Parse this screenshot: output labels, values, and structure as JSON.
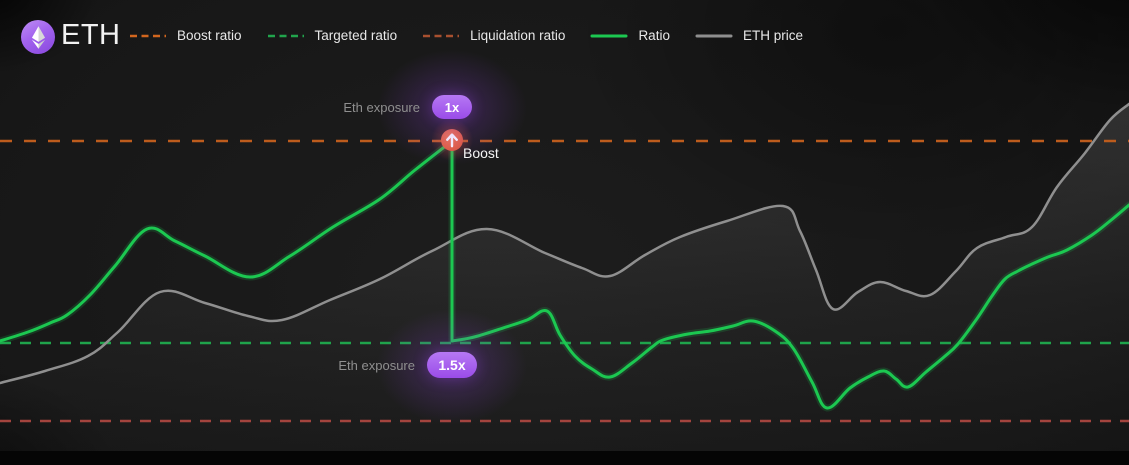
{
  "header": {
    "title": "ETH",
    "logo": {
      "icon": "ethereum-icon",
      "color": "#9b5cf0"
    },
    "legend": [
      {
        "label": "Boost ratio",
        "style": "dashed",
        "color": "#d2661e"
      },
      {
        "label": "Targeted ratio",
        "style": "dashed",
        "color": "#21a44c"
      },
      {
        "label": "Liquidation ratio",
        "style": "dashed",
        "color": "#a8502f"
      },
      {
        "label": "Ratio",
        "style": "solid",
        "color": "#1cc851"
      },
      {
        "label": "ETH price",
        "style": "solid",
        "color": "#8f8f8f"
      }
    ]
  },
  "annotations": {
    "exposure_top": {
      "label": "Eth exposure",
      "badge": "1x",
      "badge_color": "#a259f0"
    },
    "exposure_bottom": {
      "label": "Eth exposure",
      "badge": "1.5x",
      "badge_color": "#a259f0"
    },
    "boost_marker": {
      "label": "Boost",
      "color": "#e2563a",
      "icon": "arrow-up-icon"
    }
  },
  "chart_data": {
    "type": "line",
    "title": "ETH boost ratio simulation",
    "grid": false,
    "legend_position": "top",
    "coordinate_space": "screen pixels, 1129x465, y increases downward",
    "reference_lines": [
      {
        "name": "Boost ratio",
        "y": 141,
        "color": "#bd5c1d",
        "dash": [
          12,
          12
        ]
      },
      {
        "name": "Targeted ratio",
        "y": 343,
        "color": "#1fa34b",
        "dash": [
          11,
          9
        ]
      },
      {
        "name": "Liquidation ratio",
        "y": 421,
        "color": "#a3443e",
        "dash": [
          11,
          9
        ]
      }
    ],
    "series": [
      {
        "name": "ETH price",
        "color": "#8f8f8f",
        "width": 2.5,
        "area_fill": true,
        "points": [
          [
            0,
            383
          ],
          [
            45,
            371
          ],
          [
            88,
            356
          ],
          [
            118,
            332
          ],
          [
            160,
            292
          ],
          [
            205,
            303
          ],
          [
            248,
            316
          ],
          [
            282,
            320
          ],
          [
            330,
            300
          ],
          [
            380,
            279
          ],
          [
            432,
            251
          ],
          [
            487,
            229
          ],
          [
            545,
            253
          ],
          [
            582,
            268
          ],
          [
            610,
            276
          ],
          [
            645,
            255
          ],
          [
            680,
            237
          ],
          [
            727,
            221
          ],
          [
            783,
            206
          ],
          [
            800,
            231
          ],
          [
            816,
            270
          ],
          [
            833,
            309
          ],
          [
            858,
            292
          ],
          [
            880,
            282
          ],
          [
            906,
            291
          ],
          [
            930,
            295
          ],
          [
            956,
            271
          ],
          [
            977,
            248
          ],
          [
            1006,
            237
          ],
          [
            1032,
            227
          ],
          [
            1057,
            187
          ],
          [
            1085,
            153
          ],
          [
            1110,
            120
          ],
          [
            1129,
            104
          ]
        ]
      },
      {
        "name": "Ratio",
        "color": "#1cc851",
        "width": 3,
        "points_before_boost": [
          [
            0,
            341
          ],
          [
            28,
            332
          ],
          [
            50,
            323
          ],
          [
            67,
            315
          ],
          [
            90,
            295
          ],
          [
            115,
            266
          ],
          [
            147,
            229
          ],
          [
            175,
            241
          ],
          [
            205,
            256
          ],
          [
            250,
            277
          ],
          [
            290,
            256
          ],
          [
            333,
            227
          ],
          [
            380,
            199
          ],
          [
            415,
            170
          ],
          [
            452,
            141
          ]
        ],
        "boost_drop": {
          "x": 452,
          "from_y": 141,
          "to_y": 341
        },
        "points_after_boost": [
          [
            452,
            341
          ],
          [
            465,
            339
          ],
          [
            478,
            336
          ],
          [
            500,
            329
          ],
          [
            527,
            320
          ],
          [
            547,
            311
          ],
          [
            560,
            335
          ],
          [
            575,
            356
          ],
          [
            592,
            369
          ],
          [
            610,
            377
          ],
          [
            632,
            363
          ],
          [
            652,
            347
          ],
          [
            663,
            340
          ],
          [
            688,
            334
          ],
          [
            710,
            331
          ],
          [
            733,
            326
          ],
          [
            753,
            321
          ],
          [
            775,
            331
          ],
          [
            793,
            348
          ],
          [
            812,
            382
          ],
          [
            827,
            408
          ],
          [
            850,
            388
          ],
          [
            868,
            377
          ],
          [
            884,
            371
          ],
          [
            896,
            379
          ],
          [
            908,
            387
          ],
          [
            926,
            372
          ],
          [
            944,
            357
          ],
          [
            958,
            344
          ],
          [
            976,
            320
          ],
          [
            992,
            296
          ],
          [
            1005,
            279
          ],
          [
            1018,
            271
          ],
          [
            1030,
            265
          ],
          [
            1048,
            257
          ],
          [
            1067,
            250
          ],
          [
            1092,
            235
          ],
          [
            1110,
            221
          ],
          [
            1129,
            205
          ]
        ]
      }
    ],
    "marker": {
      "name": "Boost",
      "x": 452,
      "y": 140,
      "color": "#e2563a"
    }
  }
}
